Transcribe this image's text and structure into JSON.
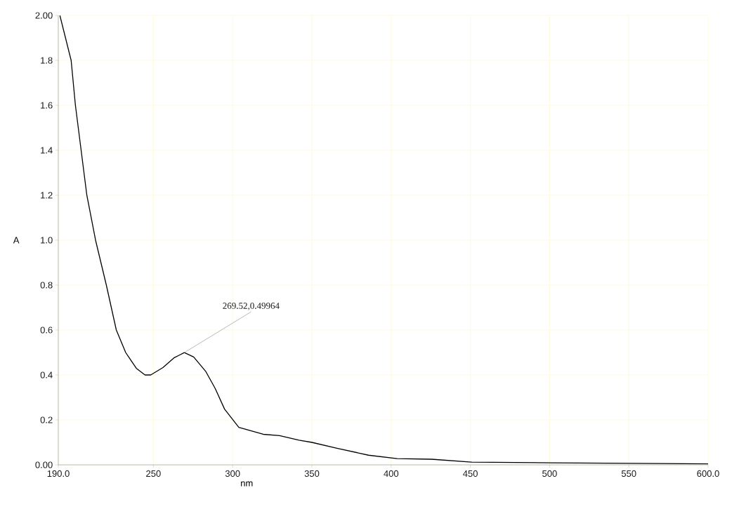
{
  "chart_data": {
    "type": "line",
    "xlabel": "nm",
    "ylabel": "A",
    "x": [
      191,
      198.1,
      200.8,
      204.4,
      208.0,
      213.5,
      220.3,
      226.6,
      232.5,
      239.2,
      244.7,
      248.3,
      256.0,
      263.2,
      269.52,
      275.4,
      283.1,
      289.0,
      294.9,
      303.9,
      319.3,
      329.6,
      341.9,
      350,
      365.8,
      385.7,
      403.8,
      425.5,
      450.8,
      501.4,
      570,
      600
    ],
    "series": [
      {
        "color": "#000000",
        "values": [
          2.0,
          1.8,
          1.6,
          1.4,
          1.2,
          1.0,
          0.8,
          0.6,
          0.5,
          0.43,
          0.4,
          0.4,
          0.433,
          0.477,
          0.49964,
          0.48,
          0.415,
          0.34,
          0.248,
          0.167,
          0.136,
          0.13,
          0.11,
          0.1,
          0.074,
          0.043,
          0.028,
          0.025,
          0.012,
          0.009,
          0.006,
          0.004
        ]
      }
    ],
    "annotations": [
      {
        "text": "269.52,0.49964",
        "x": 269.52,
        "y": 0.49964
      }
    ],
    "xlim": [
      190,
      600
    ],
    "ylim": [
      0,
      2
    ],
    "xticks": [
      {
        "value": 190,
        "label": "190.0"
      },
      250,
      300,
      350,
      400,
      450,
      500,
      550,
      {
        "value": 600,
        "label": "600.0"
      }
    ],
    "yticks": [
      {
        "value": 0,
        "label": "0.00"
      },
      {
        "value": 0.2,
        "label": "0.2"
      },
      {
        "value": 0.4,
        "label": "0.4"
      },
      {
        "value": 0.6,
        "label": "0.6"
      },
      {
        "value": 0.8,
        "label": "0.8"
      },
      {
        "value": 1.0,
        "label": "1.0"
      },
      {
        "value": 1.2,
        "label": "1.2"
      },
      {
        "value": 1.4,
        "label": "1.4"
      },
      {
        "value": 1.6,
        "label": "1.6"
      },
      {
        "value": 1.8,
        "label": "1.8"
      },
      {
        "value": 2,
        "label": "2.00"
      }
    ],
    "grid": true,
    "marker": "none",
    "line_style": "solid"
  }
}
